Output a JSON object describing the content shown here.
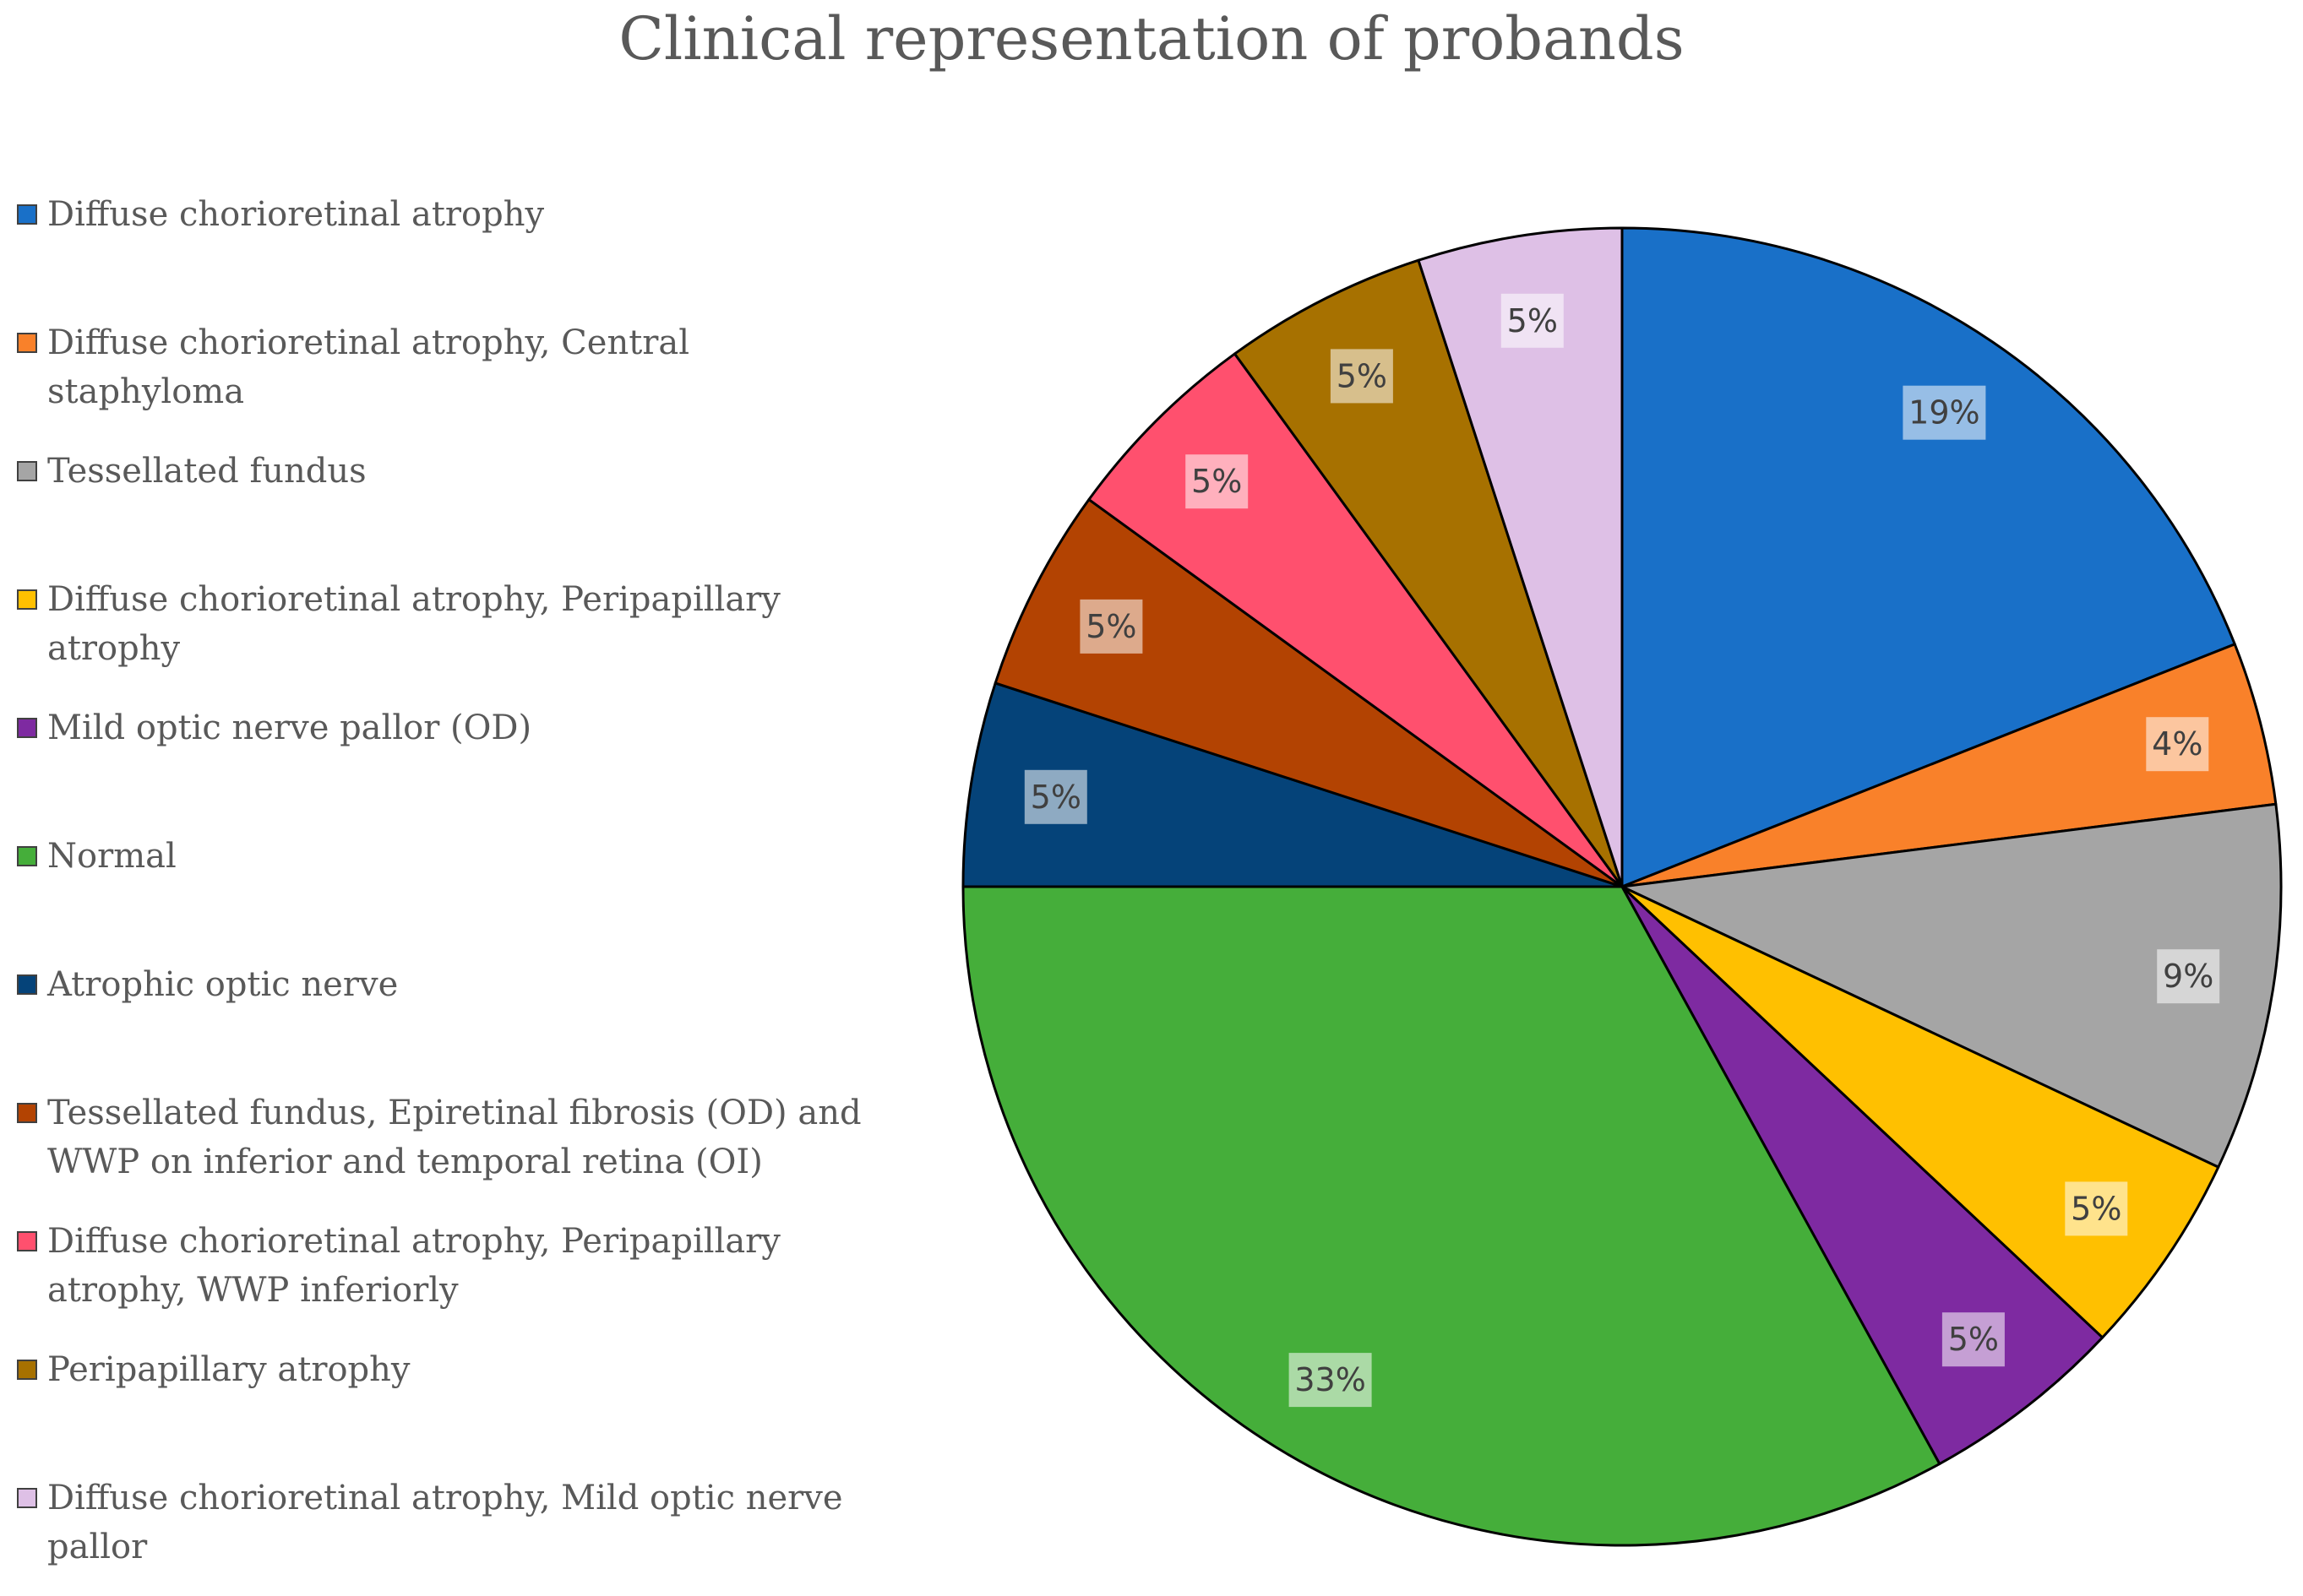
{
  "chart_data": {
    "type": "pie",
    "title": "Clinical representation of probands",
    "legend_position": "left",
    "start_angle": "top, clockwise",
    "slices": [
      {
        "label": "Diffuse chorioretinal atrophy",
        "value": 19,
        "display": "19%",
        "color": "#1970C8"
      },
      {
        "label": "Diffuse chorioretinal atrophy, Central staphyloma",
        "value": 4,
        "display": "4%",
        "color": "#F9812A"
      },
      {
        "label": "Tessellated fundus",
        "value": 9,
        "display": "9%",
        "color": "#A5A5A5"
      },
      {
        "label": "Diffuse chorioretinal atrophy, Peripapillary atrophy",
        "value": 5,
        "display": "5%",
        "color": "#FFC000"
      },
      {
        "label": "Mild optic nerve pallor (OD)",
        "value": 5,
        "display": "5%",
        "color": "#7E2AA1"
      },
      {
        "label": "Normal",
        "value": 33,
        "display": "33%",
        "color": "#45AE3A"
      },
      {
        "label": "Atrophic optic nerve",
        "value": 5,
        "display": "5%",
        "color": "#054379"
      },
      {
        "label": "Tessellated fundus, Epiretinal fibrosis (OD) and WWP on inferior and temporal retina (OI)",
        "value": 5,
        "display": "5%",
        "color": "#B34302"
      },
      {
        "label": "Diffuse chorioretinal atrophy, Peripapillary atrophy, WWP inferiorly",
        "value": 5,
        "display": "5%",
        "color": "#FF506E"
      },
      {
        "label": "Peripapillary atrophy",
        "value": 5,
        "display": "5%",
        "color": "#A77100"
      },
      {
        "label": "Diffuse chorioretinal atrophy, Mild optic nerve pallor",
        "value": 5,
        "display": "5%",
        "color": "#DEC0E6"
      }
    ]
  }
}
